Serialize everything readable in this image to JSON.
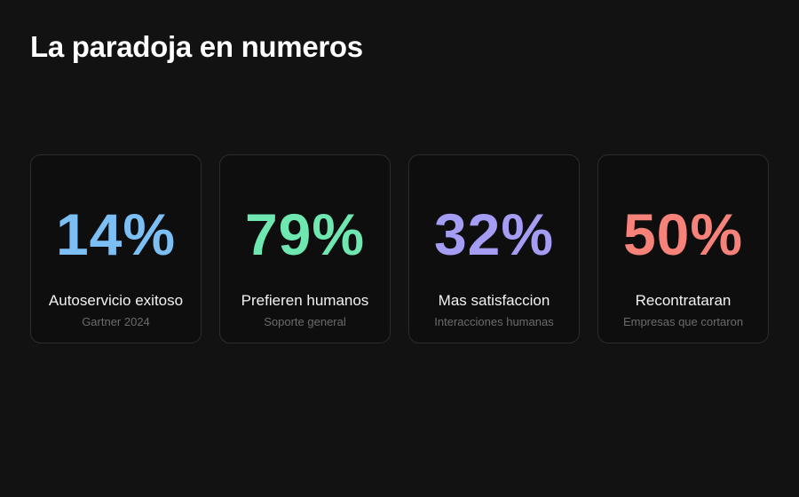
{
  "title": "La paradoja en numeros",
  "cards": [
    {
      "value": "14%",
      "label": "Autoservicio exitoso",
      "source": "Gartner 2024",
      "color": "#7cbff5"
    },
    {
      "value": "79%",
      "label": "Prefieren humanos",
      "source": "Soporte general",
      "color": "#6ee7b0"
    },
    {
      "value": "32%",
      "label": "Mas satisfaccion",
      "source": "Interacciones humanas",
      "color": "#a59cf4"
    },
    {
      "value": "50%",
      "label": "Recontrataran",
      "source": "Empresas que cortaron",
      "color": "#f7827a"
    }
  ]
}
